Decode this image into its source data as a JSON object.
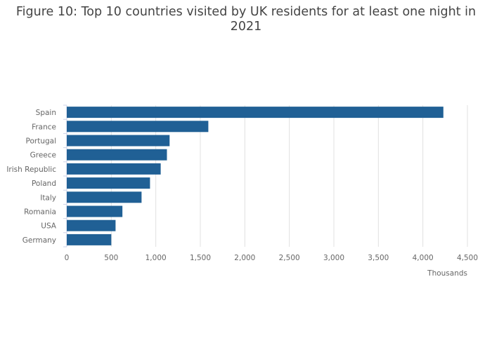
{
  "chart_data": {
    "type": "bar",
    "orientation": "horizontal",
    "title": "Figure 10: Top 10 countries visited by UK residents for at least one night in 2021",
    "xlabel": "Thousands",
    "ylabel": "",
    "categories": [
      "Spain",
      "France",
      "Portugal",
      "Greece",
      "Irish Republic",
      "Poland",
      "Italy",
      "Romania",
      "USA",
      "Germany"
    ],
    "values": [
      4230,
      1590,
      1155,
      1125,
      1055,
      935,
      840,
      625,
      548,
      500
    ],
    "xlim": [
      0,
      4500
    ],
    "xticks": [
      0,
      500,
      1000,
      1500,
      2000,
      2500,
      3000,
      3500,
      4000,
      4500
    ],
    "xtick_labels": [
      "0",
      "500",
      "1,000",
      "1,500",
      "2,000",
      "2,500",
      "3,000",
      "3,500",
      "4,000",
      "4,500"
    ],
    "grid": "vertical",
    "legend": "none",
    "bar_color": "#206095"
  }
}
